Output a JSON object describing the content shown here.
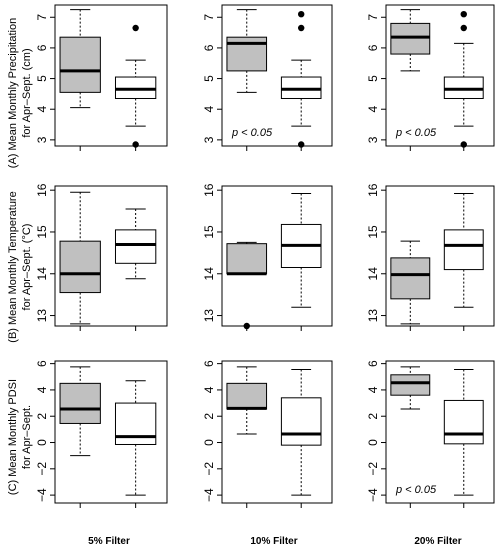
{
  "colors": {
    "filtered_box": "#c0c0c0",
    "all_box": "#ffffff",
    "line": "#000000"
  },
  "row_labels": [
    [
      "(A) Mean Monthly Precipitation",
      "for Apr–Sept. (cm)"
    ],
    [
      "(B) Mean Monthly Temperature",
      "for Apr–Sept. (°C)"
    ],
    [
      "(C) Mean Monthly PDSI",
      "for Apr–Sept."
    ]
  ],
  "column_labels": [
    "5% Filter",
    "10% Filter",
    "20% Filter"
  ],
  "chart_data": [
    {
      "type": "box",
      "row": 0,
      "col": 0,
      "ylim": [
        2.8,
        7.4
      ],
      "yticks": [
        3,
        4,
        5,
        6,
        7
      ],
      "annotation": "",
      "boxes": [
        {
          "fill": "filtered",
          "whisker_low": 4.05,
          "q1": 4.55,
          "median": 5.25,
          "q3": 6.35,
          "whisker_high": 7.25,
          "outliers": []
        },
        {
          "fill": "all",
          "whisker_low": 3.45,
          "q1": 4.35,
          "median": 4.65,
          "q3": 5.05,
          "whisker_high": 5.6,
          "outliers": [
            6.65,
            2.85
          ]
        }
      ]
    },
    {
      "type": "box",
      "row": 0,
      "col": 1,
      "ylim": [
        2.8,
        7.4
      ],
      "yticks": [
        3,
        4,
        5,
        6,
        7
      ],
      "annotation": "p < 0.05",
      "boxes": [
        {
          "fill": "filtered",
          "whisker_low": 4.55,
          "q1": 5.25,
          "median": 6.15,
          "q3": 6.35,
          "whisker_high": 7.25,
          "outliers": []
        },
        {
          "fill": "all",
          "whisker_low": 3.45,
          "q1": 4.35,
          "median": 4.65,
          "q3": 5.05,
          "whisker_high": 5.6,
          "outliers": [
            7.1,
            6.65,
            2.85
          ]
        }
      ]
    },
    {
      "type": "box",
      "row": 0,
      "col": 2,
      "ylim": [
        2.8,
        7.4
      ],
      "yticks": [
        3,
        4,
        5,
        6,
        7
      ],
      "annotation": "p < 0.05",
      "boxes": [
        {
          "fill": "filtered",
          "whisker_low": 5.25,
          "q1": 5.8,
          "median": 6.35,
          "q3": 6.8,
          "whisker_high": 7.25,
          "outliers": []
        },
        {
          "fill": "all",
          "whisker_low": 3.45,
          "q1": 4.35,
          "median": 4.65,
          "q3": 5.05,
          "whisker_high": 6.15,
          "outliers": [
            7.1,
            6.65,
            2.85
          ]
        }
      ]
    },
    {
      "type": "box",
      "row": 1,
      "col": 0,
      "ylim": [
        12.75,
        16.1
      ],
      "yticks": [
        13,
        14,
        15,
        16
      ],
      "annotation": "",
      "boxes": [
        {
          "fill": "filtered",
          "whisker_low": 12.8,
          "q1": 13.55,
          "median": 14.0,
          "q3": 14.78,
          "whisker_high": 15.95,
          "outliers": []
        },
        {
          "fill": "all",
          "whisker_low": 13.88,
          "q1": 14.25,
          "median": 14.7,
          "q3": 15.05,
          "whisker_high": 15.55,
          "outliers": []
        }
      ]
    },
    {
      "type": "box",
      "row": 1,
      "col": 1,
      "ylim": [
        12.75,
        16.1
      ],
      "yticks": [
        13,
        14,
        15,
        16
      ],
      "annotation": "",
      "boxes": [
        {
          "fill": "filtered",
          "whisker_low": 14.0,
          "q1": 14.0,
          "median": 14.0,
          "q3": 14.72,
          "whisker_high": 14.75,
          "outliers": [
            12.75
          ]
        },
        {
          "fill": "all",
          "whisker_low": 13.2,
          "q1": 14.15,
          "median": 14.68,
          "q3": 15.18,
          "whisker_high": 15.92,
          "outliers": []
        }
      ]
    },
    {
      "type": "box",
      "row": 1,
      "col": 2,
      "ylim": [
        12.75,
        16.1
      ],
      "yticks": [
        13,
        14,
        15,
        16
      ],
      "annotation": "",
      "boxes": [
        {
          "fill": "filtered",
          "whisker_low": 12.8,
          "q1": 13.4,
          "median": 13.98,
          "q3": 14.38,
          "whisker_high": 14.78,
          "outliers": []
        },
        {
          "fill": "all",
          "whisker_low": 13.2,
          "q1": 14.1,
          "median": 14.68,
          "q3": 15.05,
          "whisker_high": 15.92,
          "outliers": []
        }
      ]
    },
    {
      "type": "box",
      "row": 2,
      "col": 0,
      "ylim": [
        -4.6,
        6.2
      ],
      "yticks": [
        -4,
        -2,
        0,
        2,
        4,
        6
      ],
      "annotation": "",
      "boxes": [
        {
          "fill": "filtered",
          "whisker_low": -1.0,
          "q1": 1.45,
          "median": 2.55,
          "q3": 4.5,
          "whisker_high": 5.75,
          "outliers": []
        },
        {
          "fill": "all",
          "whisker_low": -4.0,
          "q1": -0.15,
          "median": 0.45,
          "q3": 3.0,
          "whisker_high": 4.7,
          "outliers": []
        }
      ]
    },
    {
      "type": "box",
      "row": 2,
      "col": 1,
      "ylim": [
        -4.6,
        6.2
      ],
      "yticks": [
        -4,
        -2,
        0,
        2,
        4,
        6
      ],
      "annotation": "",
      "boxes": [
        {
          "fill": "filtered",
          "whisker_low": 0.65,
          "q1": 2.55,
          "median": 2.6,
          "q3": 4.5,
          "whisker_high": 5.75,
          "outliers": []
        },
        {
          "fill": "all",
          "whisker_low": -4.0,
          "q1": -0.2,
          "median": 0.65,
          "q3": 3.4,
          "whisker_high": 5.55,
          "outliers": []
        }
      ]
    },
    {
      "type": "box",
      "row": 2,
      "col": 2,
      "ylim": [
        -4.6,
        6.2
      ],
      "yticks": [
        -4,
        -2,
        0,
        2,
        4,
        6
      ],
      "annotation": "p < 0.05",
      "boxes": [
        {
          "fill": "filtered",
          "whisker_low": 2.55,
          "q1": 3.6,
          "median": 4.55,
          "q3": 5.15,
          "whisker_high": 5.75,
          "outliers": []
        },
        {
          "fill": "all",
          "whisker_low": -4.0,
          "q1": -0.1,
          "median": 0.65,
          "q3": 3.2,
          "whisker_high": 5.55,
          "outliers": []
        }
      ]
    }
  ]
}
